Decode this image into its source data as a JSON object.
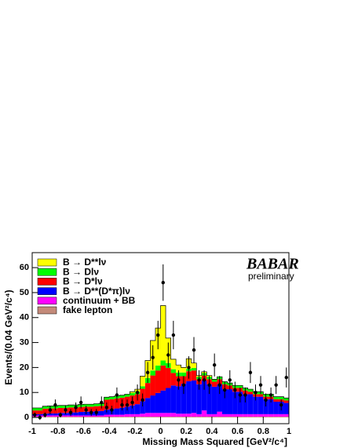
{
  "chart_data": {
    "type": "stacked_histogram",
    "xlabel": "Missing Mass Squared [GeV²/c⁴]",
    "ylabel": "Events/(0.04 GeV²/c⁴)",
    "annotations": [
      "BABAR",
      "preliminary"
    ],
    "bins": [
      -1,
      -0.96,
      -0.92,
      -0.88,
      -0.84,
      -0.8,
      -0.76,
      -0.72,
      -0.68,
      -0.64,
      -0.6,
      -0.56,
      -0.52,
      -0.48,
      -0.44,
      -0.4,
      -0.36,
      -0.32,
      -0.28,
      -0.24,
      -0.2,
      -0.16,
      -0.12,
      -0.08,
      -0.04,
      0,
      0.04,
      0.08,
      0.12,
      0.16,
      0.2,
      0.24,
      0.28,
      0.32,
      0.36,
      0.4,
      0.44,
      0.48,
      0.52,
      0.56,
      0.6,
      0.64,
      0.68,
      0.72,
      0.76,
      0.8,
      0.84,
      0.88,
      0.92,
      0.96,
      1
    ],
    "series": [
      {
        "name": "B → D**lν",
        "color": "#ffff00",
        "values": [
          0,
          0,
          0,
          0,
          0,
          0,
          0,
          0,
          0,
          0,
          0,
          0,
          0,
          0,
          0,
          0,
          0,
          0,
          0,
          0.5,
          1,
          4,
          7,
          12,
          15,
          22,
          10,
          4,
          3,
          2,
          4,
          2,
          0.5,
          0.5,
          0.5,
          0,
          0,
          0,
          0,
          0,
          0,
          0,
          0,
          0,
          0,
          0,
          0,
          0,
          0,
          0
        ]
      },
      {
        "name": "B → Dlν",
        "color": "#00ff00",
        "values": [
          1,
          1,
          1,
          1,
          1,
          1,
          1,
          1,
          1,
          1,
          1,
          1,
          1,
          1,
          1,
          1,
          1,
          1,
          1,
          1,
          1,
          1,
          2,
          2,
          2,
          2,
          2,
          1.5,
          1.5,
          1.5,
          1,
          1,
          1,
          1,
          1,
          1,
          1,
          1,
          1,
          1,
          1,
          1,
          1,
          1,
          1,
          1,
          1,
          1,
          1,
          1
        ]
      },
      {
        "name": "B → D*lν",
        "color": "#ff0000",
        "values": [
          1.5,
          1.5,
          2,
          2,
          2,
          2,
          2,
          2,
          2,
          2,
          2,
          2,
          2,
          2,
          4,
          4,
          4,
          4,
          4,
          4,
          4,
          5,
          6,
          8,
          9,
          10,
          8,
          5,
          4,
          3,
          4,
          4,
          2,
          2,
          2,
          2,
          2,
          2,
          1.5,
          1.5,
          1.5,
          1.5,
          1,
          1,
          1,
          1,
          1,
          1,
          1,
          1
        ]
      },
      {
        "name": "B → D**(D*π)lν",
        "color": "#0000ff",
        "values": [
          0.5,
          0.5,
          0.7,
          0.8,
          0.8,
          1,
          1,
          1.2,
          1.2,
          1.4,
          1.5,
          1.5,
          1.7,
          1.8,
          2,
          2.2,
          2.5,
          2.8,
          3,
          3.5,
          4,
          5,
          6,
          7,
          8,
          9,
          10,
          11,
          11,
          12,
          13,
          13,
          12,
          12,
          12,
          11,
          11,
          10,
          10,
          9,
          9,
          8,
          8,
          7,
          7,
          6,
          6,
          5,
          5,
          4.5
        ]
      },
      {
        "name": "continuum + BB",
        "color": "#ff00ff",
        "values": [
          0.5,
          0.5,
          0.5,
          0.5,
          0.5,
          0.5,
          0.5,
          0.5,
          0.5,
          0.5,
          0.5,
          0.5,
          0.5,
          0.5,
          0.8,
          0.8,
          0.8,
          0.8,
          1,
          1,
          1,
          1.2,
          1.5,
          1.5,
          1.5,
          1.5,
          1.5,
          1.5,
          1.2,
          1.2,
          1.2,
          1.5,
          1,
          2.5,
          1,
          1,
          2,
          1,
          1,
          1,
          1,
          1,
          1,
          1,
          1,
          1,
          1,
          1,
          1,
          1
        ]
      },
      {
        "name": "fake lepton",
        "color": "#c48a7a",
        "values": [
          0.3,
          0.3,
          0.3,
          0.3,
          0.3,
          0.3,
          0.3,
          0.3,
          0.3,
          0.3,
          0.3,
          0.3,
          0.3,
          0.3,
          0.3,
          0.3,
          0.3,
          0.3,
          0.3,
          0.3,
          0.3,
          0.3,
          0.3,
          0.3,
          0.3,
          0.3,
          0.3,
          0.3,
          0.3,
          0.3,
          0.3,
          0.3,
          0.3,
          0.3,
          0.3,
          0.3,
          0.3,
          0.3,
          0.3,
          0.3,
          0.3,
          0.3,
          0.3,
          0.3,
          0.3,
          0.3,
          0.3,
          0.3,
          0.3,
          0.3
        ]
      }
    ],
    "data": {
      "color": "#000000",
      "values": [
        1,
        0,
        1,
        3,
        5,
        1,
        3,
        2,
        4,
        6,
        3,
        2,
        2,
        6,
        4,
        3,
        9,
        5,
        5,
        6,
        10,
        7,
        18,
        24,
        33,
        54,
        25,
        33,
        15,
        13,
        20,
        27,
        15,
        15,
        13,
        21,
        13,
        11,
        15,
        11,
        9,
        9,
        18,
        10,
        13,
        7,
        9,
        13,
        5,
        16
      ],
      "errors": [
        1,
        1,
        1,
        1.7,
        2.2,
        1,
        1.7,
        1.4,
        2,
        2.4,
        1.7,
        1.4,
        1.4,
        2.4,
        2,
        1.7,
        3,
        2.2,
        2.2,
        2.4,
        3.2,
        2.6,
        4.2,
        4.9,
        5.7,
        7.3,
        5,
        5.7,
        3.9,
        3.6,
        4.5,
        5.2,
        3.9,
        3.9,
        3.6,
        4.6,
        3.6,
        3.3,
        3.9,
        3.3,
        3,
        3,
        4.2,
        3.2,
        3.6,
        2.6,
        3,
        3.6,
        2.2,
        4
      ]
    },
    "xlim": [
      -1,
      1
    ],
    "ylim": [
      -2.5,
      66
    ],
    "xticks": [
      -1,
      -0.8,
      -0.6,
      -0.4,
      -0.2,
      0,
      0.2,
      0.4,
      0.6,
      0.8,
      1
    ],
    "yticks": [
      0,
      10,
      20,
      30,
      40,
      50,
      60
    ]
  }
}
